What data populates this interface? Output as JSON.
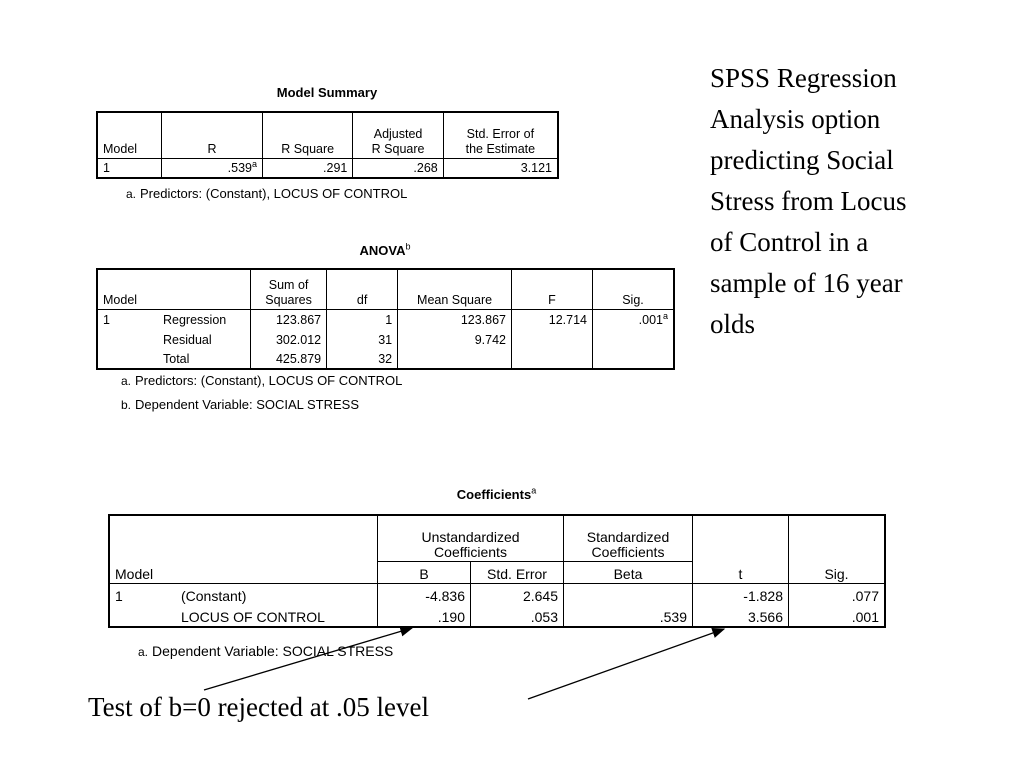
{
  "side_text": "SPSS Regression Analysis option predicting Social Stress from Locus of Control in a sample of 16 year olds",
  "caption": "Test of b=0 rejected at .05 level",
  "model_summary": {
    "title": "Model Summary",
    "headers": {
      "model": "Model",
      "r": "R",
      "r_square": "R Square",
      "adj_1": "Adjusted",
      "adj_2": "R Square",
      "se_1": "Std. Error of",
      "se_2": "the Estimate"
    },
    "row": {
      "model": "1",
      "r": ".539",
      "r_sup": "a",
      "r_square": ".291",
      "adj_r_square": ".268",
      "se": "3.121"
    },
    "note_mark": "a.",
    "note_text": "Predictors: (Constant), LOCUS OF CONTROL"
  },
  "anova": {
    "title": "ANOVA",
    "title_sup": "b",
    "headers": {
      "model": "Model",
      "ss_1": "Sum of",
      "ss_2": "Squares",
      "df": "df",
      "ms": "Mean Square",
      "f": "F",
      "sig": "Sig."
    },
    "model_num": "1",
    "rows": [
      {
        "label": "Regression",
        "ss": "123.867",
        "df": "1",
        "ms": "123.867",
        "f": "12.714",
        "sig": ".001",
        "sig_sup": "a"
      },
      {
        "label": "Residual",
        "ss": "302.012",
        "df": "31",
        "ms": "9.742"
      },
      {
        "label": "Total",
        "ss": "425.879",
        "df": "32"
      }
    ],
    "notes": [
      {
        "mark": "a.",
        "text": "Predictors: (Constant), LOCUS OF CONTROL"
      },
      {
        "mark": "b.",
        "text": "Dependent Variable: SOCIAL STRESS"
      }
    ]
  },
  "coefficients": {
    "title": "Coefficients",
    "title_sup": "a",
    "headers": {
      "unstd_1": "Unstandardized",
      "unstd_2": "Coefficients",
      "std_1": "Standardized",
      "std_2": "Coefficients",
      "model": "Model",
      "b": "B",
      "se": "Std. Error",
      "beta": "Beta",
      "t": "t",
      "sig": "Sig."
    },
    "model_num": "1",
    "rows": [
      {
        "label": "(Constant)",
        "b": "-4.836",
        "se": "2.645",
        "t": "-1.828",
        "sig": ".077"
      },
      {
        "label": "LOCUS OF CONTROL",
        "b": ".190",
        "se": ".053",
        "beta": ".539",
        "t": "3.566",
        "sig": ".001"
      }
    ],
    "note_mark": "a.",
    "note_text": "Dependent Variable: SOCIAL STRESS"
  }
}
